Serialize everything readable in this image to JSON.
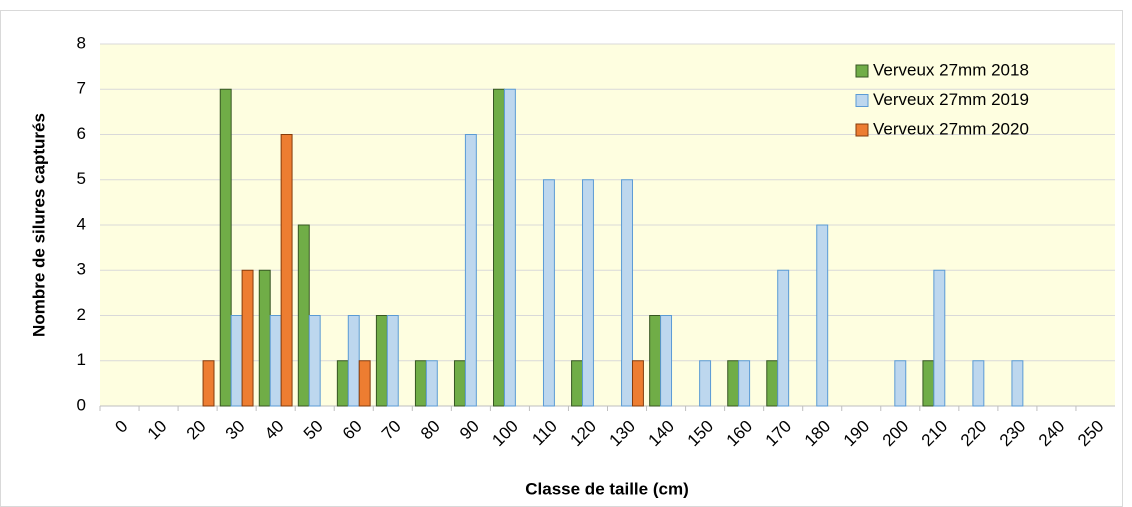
{
  "chart_data": {
    "type": "bar",
    "x_label": "Classe de taille (cm)",
    "y_label": "Nombre de silures capturés",
    "categories": [
      "0",
      "10",
      "20",
      "30",
      "40",
      "50",
      "60",
      "70",
      "80",
      "90",
      "100",
      "110",
      "120",
      "130",
      "140",
      "150",
      "160",
      "170",
      "180",
      "190",
      "200",
      "210",
      "220",
      "230",
      "240",
      "250"
    ],
    "series": [
      {
        "name": "Verveux 27mm 2018",
        "color": "#70ad47",
        "stroke": "#375623",
        "values": [
          0,
          0,
          0,
          7,
          3,
          4,
          1,
          2,
          1,
          1,
          7,
          0,
          1,
          0,
          2,
          0,
          1,
          1,
          0,
          0,
          0,
          1,
          0,
          0,
          0,
          0
        ]
      },
      {
        "name": "Verveux 27mm 2019",
        "color": "#bdd7ee",
        "stroke": "#5b9bd5",
        "values": [
          0,
          0,
          0,
          2,
          2,
          2,
          2,
          2,
          1,
          6,
          7,
          5,
          5,
          5,
          2,
          1,
          1,
          3,
          4,
          0,
          1,
          3,
          1,
          1,
          0,
          0
        ]
      },
      {
        "name": "Verveux 27mm 2020",
        "color": "#ed7d31",
        "stroke": "#843c0c",
        "values": [
          0,
          0,
          1,
          3,
          6,
          0,
          1,
          0,
          0,
          0,
          0,
          0,
          0,
          1,
          0,
          0,
          0,
          0,
          0,
          0,
          0,
          0,
          0,
          0,
          0,
          0
        ]
      }
    ],
    "ylim": [
      0,
      8
    ],
    "yticks": [
      0,
      1,
      2,
      3,
      4,
      5,
      6,
      7,
      8
    ],
    "grid": true,
    "legend": "top-right"
  }
}
